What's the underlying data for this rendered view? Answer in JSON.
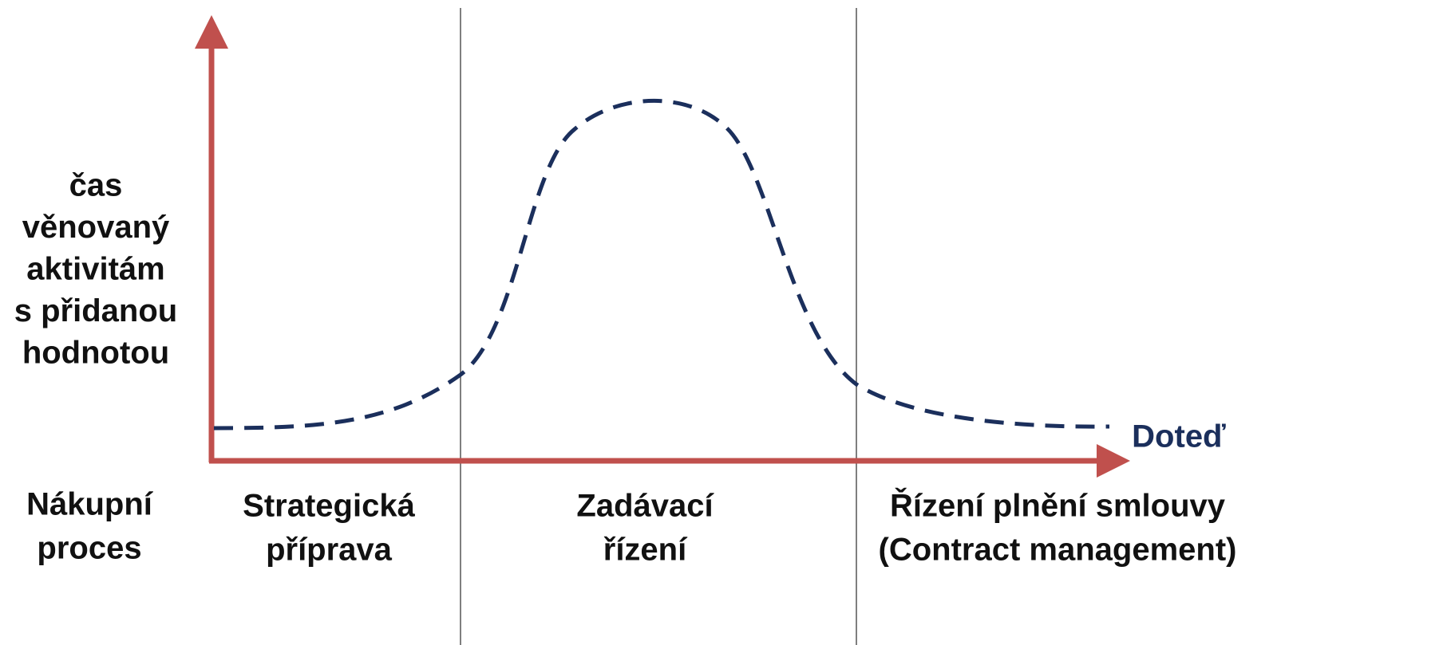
{
  "y_axis_label": [
    "čas",
    "věnovaný",
    "aktivitám",
    "s přidanou",
    "hodnotou"
  ],
  "x_axis_label": [
    "Nákupní",
    "proces"
  ],
  "phases": [
    {
      "lines": [
        "Strategická",
        "příprava"
      ]
    },
    {
      "lines": [
        "Zadávací",
        "řízení"
      ]
    },
    {
      "lines": [
        "Řízení plnění smlouvy",
        "(Contract management)"
      ]
    }
  ],
  "curve_label": "Doteď"
}
